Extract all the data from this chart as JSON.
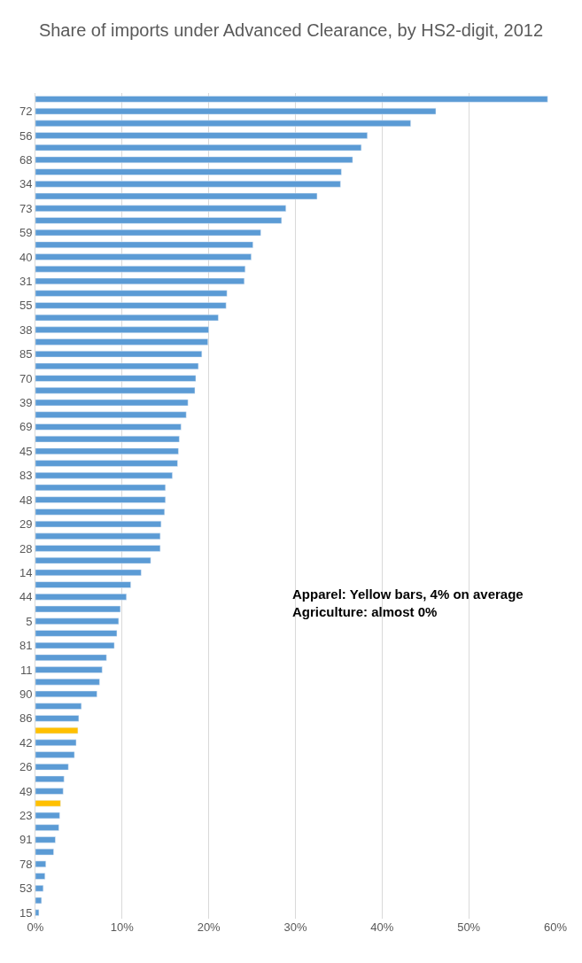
{
  "chart_data": {
    "type": "bar",
    "orientation": "horizontal",
    "title": "Share of imports under Advanced Clearance, by HS2-digit, 2012",
    "categories": [
      null,
      "72",
      null,
      "56",
      null,
      "68",
      null,
      "34",
      null,
      "73",
      null,
      "59",
      null,
      "40",
      null,
      "31",
      null,
      "55",
      null,
      "38",
      null,
      "85",
      null,
      "70",
      null,
      "39",
      null,
      "69",
      null,
      "45",
      null,
      "83",
      null,
      "48",
      null,
      "29",
      null,
      "28",
      null,
      "14",
      null,
      "44",
      null,
      "5",
      null,
      "81",
      null,
      "11",
      null,
      "90",
      null,
      "86",
      null,
      "42",
      null,
      "26",
      null,
      "49",
      null,
      "23",
      null,
      "91",
      null,
      "78",
      null,
      "53",
      null,
      "15"
    ],
    "values": [
      59.1,
      46.2,
      43.3,
      38.3,
      37.6,
      36.6,
      35.3,
      35.2,
      32.5,
      28.9,
      28.4,
      26.0,
      25.1,
      24.9,
      24.2,
      24.1,
      22.1,
      22.0,
      21.1,
      20.0,
      19.9,
      19.2,
      18.8,
      18.5,
      18.4,
      17.6,
      17.4,
      16.8,
      16.6,
      16.5,
      16.4,
      15.8,
      15.0,
      15.0,
      14.9,
      14.5,
      14.4,
      14.4,
      13.3,
      12.2,
      11.0,
      10.5,
      9.8,
      9.6,
      9.4,
      9.1,
      8.2,
      7.7,
      7.4,
      7.1,
      5.3,
      5.0,
      4.9,
      4.7,
      4.5,
      3.8,
      3.3,
      3.2,
      2.9,
      2.8,
      2.7,
      2.3,
      2.1,
      1.2,
      1.1,
      0.9,
      0.7,
      0.4
    ],
    "colors": [
      "#5b9bd5",
      "#5b9bd5",
      "#5b9bd5",
      "#5b9bd5",
      "#5b9bd5",
      "#5b9bd5",
      "#5b9bd5",
      "#5b9bd5",
      "#5b9bd5",
      "#5b9bd5",
      "#5b9bd5",
      "#5b9bd5",
      "#5b9bd5",
      "#5b9bd5",
      "#5b9bd5",
      "#5b9bd5",
      "#5b9bd5",
      "#5b9bd5",
      "#5b9bd5",
      "#5b9bd5",
      "#5b9bd5",
      "#5b9bd5",
      "#5b9bd5",
      "#5b9bd5",
      "#5b9bd5",
      "#5b9bd5",
      "#5b9bd5",
      "#5b9bd5",
      "#5b9bd5",
      "#5b9bd5",
      "#5b9bd5",
      "#5b9bd5",
      "#5b9bd5",
      "#5b9bd5",
      "#5b9bd5",
      "#5b9bd5",
      "#5b9bd5",
      "#5b9bd5",
      "#5b9bd5",
      "#5b9bd5",
      "#5b9bd5",
      "#5b9bd5",
      "#5b9bd5",
      "#5b9bd5",
      "#5b9bd5",
      "#5b9bd5",
      "#5b9bd5",
      "#5b9bd5",
      "#5b9bd5",
      "#5b9bd5",
      "#5b9bd5",
      "#5b9bd5",
      "#ffc000",
      "#5b9bd5",
      "#5b9bd5",
      "#5b9bd5",
      "#5b9bd5",
      "#5b9bd5",
      "#ffc000",
      "#5b9bd5",
      "#5b9bd5",
      "#5b9bd5",
      "#5b9bd5",
      "#5b9bd5",
      "#5b9bd5",
      "#5b9bd5",
      "#5b9bd5",
      "#5b9bd5"
    ],
    "xlim": [
      0,
      60
    ],
    "xticks": [
      {
        "value": 0,
        "label": "0%"
      },
      {
        "value": 10,
        "label": "10%"
      },
      {
        "value": 20,
        "label": "20%"
      },
      {
        "value": 30,
        "label": "30%"
      },
      {
        "value": 40,
        "label": "40%"
      },
      {
        "value": 50,
        "label": "50%"
      },
      {
        "value": 60,
        "label": "60%"
      }
    ],
    "grid": "x",
    "annotations": [
      "Apparel: Yellow bars, 4% on average",
      "Agriculture: almost 0%"
    ]
  }
}
